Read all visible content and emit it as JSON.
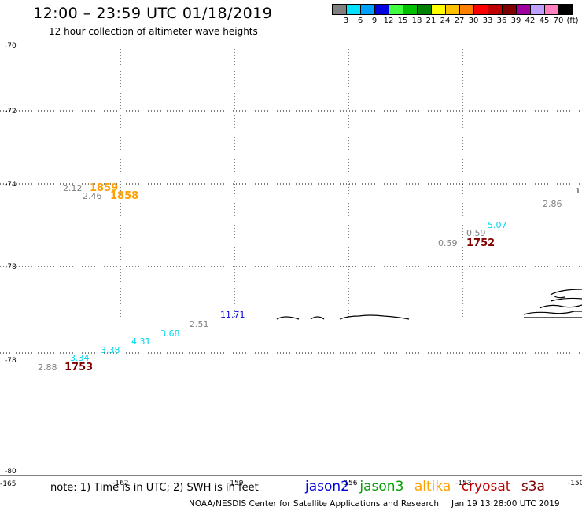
{
  "title": "12:00 – 23:59 UTC 01/18/2019",
  "subtitle": "12 hour collection of altimeter wave heights",
  "legend": {
    "colors": [
      "#808080",
      "#00e0ff",
      "#00a0ff",
      "#0000e0",
      "#40ff40",
      "#00c000",
      "#008000",
      "#ffff00",
      "#ffc000",
      "#ff8000",
      "#ff0000",
      "#c00000",
      "#800000",
      "#a000a0",
      "#c0a0ff",
      "#ff80c0",
      "#000000"
    ],
    "labels": [
      "3",
      "6",
      "9",
      "12",
      "15",
      "18",
      "21",
      "24",
      "27",
      "30",
      "33",
      "36",
      "39",
      "42",
      "45",
      "70",
      "(ft)"
    ]
  },
  "lat_labels": [
    "-70",
    "-72",
    "-74",
    "-76",
    "-78",
    "-78",
    "-80"
  ],
  "lon_labels": [
    "-165",
    "-162",
    "-159",
    "-156",
    "-153",
    "-150"
  ],
  "observations": [
    {
      "value": "2.12",
      "color": "#808080"
    },
    {
      "value": "2.46",
      "color": "#808080"
    },
    {
      "value": "2.86",
      "color": "#808080"
    },
    {
      "value": "5.07",
      "color": "#00d8f0"
    },
    {
      "value": "0.59",
      "color": "#808080"
    },
    {
      "value": "0.59",
      "color": "#808080"
    },
    {
      "value": "11.71",
      "color": "#0000e0"
    },
    {
      "value": "2.51",
      "color": "#808080"
    },
    {
      "value": "3.68",
      "color": "#00d8f0"
    },
    {
      "value": "4.31",
      "color": "#00d8f0"
    },
    {
      "value": "3.38",
      "color": "#00d8f0"
    },
    {
      "value": "3.34",
      "color": "#00d8f0"
    },
    {
      "value": "2.88",
      "color": "#808080"
    }
  ],
  "times": [
    {
      "value": "1859",
      "color": "#ffa000"
    },
    {
      "value": "1858",
      "color": "#ffa000"
    },
    {
      "value": "1752",
      "color": "#800000"
    },
    {
      "value": "1753",
      "color": "#800000"
    }
  ],
  "note": "note: 1) Time is in UTC; 2) SWH is in feet",
  "satellites": [
    {
      "name": "jason2",
      "color": "#0000e0"
    },
    {
      "name": "jason3",
      "color": "#00a000"
    },
    {
      "name": "altika",
      "color": "#ffa000"
    },
    {
      "name": "cryosat",
      "color": "#c00000"
    },
    {
      "name": "s3a",
      "color": "#800000"
    }
  ],
  "credit": {
    "org": "NOAA/NESDIS Center for Satellite Applications and Research",
    "stamp": "Jan 19 13:28:00 UTC 2019"
  }
}
